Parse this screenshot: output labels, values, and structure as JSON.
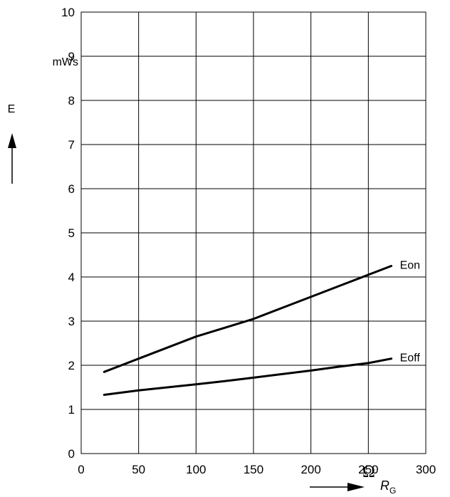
{
  "chart_data": {
    "type": "line",
    "xlim": [
      0,
      300
    ],
    "ylim": [
      0,
      10
    ],
    "x_ticks": [
      "0",
      "50",
      "100",
      "150",
      "200",
      "250",
      "300"
    ],
    "y_ticks": [
      "0",
      "1",
      "2",
      "3",
      "4",
      "5",
      "6",
      "7",
      "8",
      "9",
      "10"
    ],
    "xlabel_symbol": "Ω",
    "xlabel_var": "R",
    "xlabel_sub": "G",
    "ylabel": "E",
    "yunit": "mWs",
    "grid": true,
    "series": [
      {
        "name": "Eon",
        "x": [
          20,
          50,
          75,
          100,
          125,
          150,
          175,
          200,
          225,
          250,
          270
        ],
        "y": [
          1.85,
          2.15,
          2.4,
          2.65,
          2.85,
          3.05,
          3.3,
          3.55,
          3.8,
          4.05,
          4.25
        ]
      },
      {
        "name": "Eoff",
        "x": [
          20,
          50,
          75,
          100,
          125,
          150,
          175,
          200,
          225,
          250,
          270
        ],
        "y": [
          1.33,
          1.43,
          1.5,
          1.57,
          1.64,
          1.72,
          1.8,
          1.88,
          1.97,
          2.05,
          2.15
        ]
      }
    ]
  }
}
